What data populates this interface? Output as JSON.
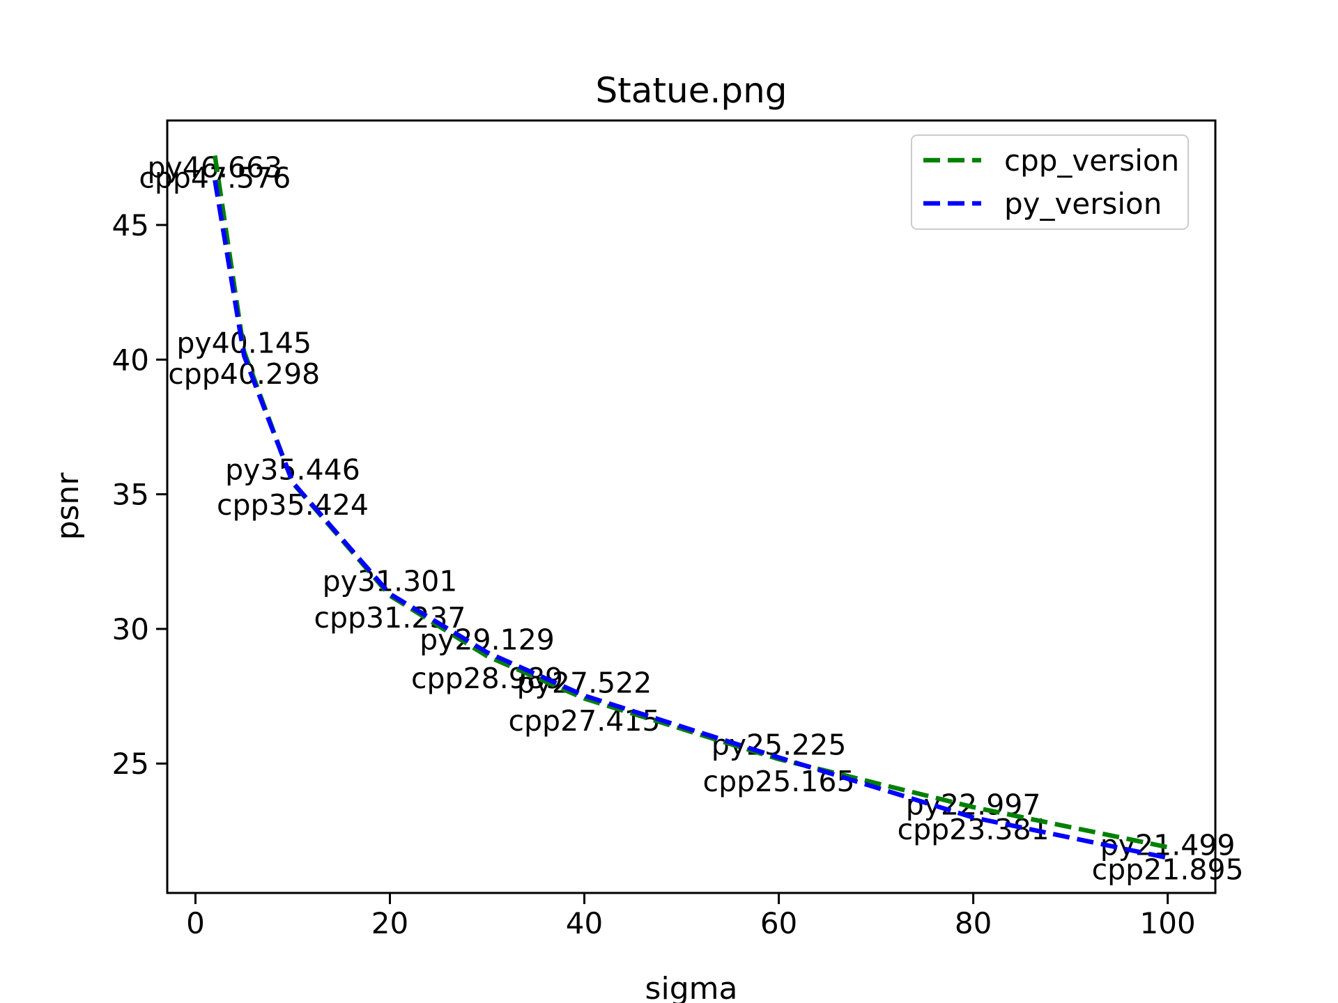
{
  "title": "Statue.png",
  "colors": {
    "cpp": "#008000",
    "py": "#0000ff",
    "spine": "#000000",
    "legend_border": "#cccccc"
  },
  "chart_data": {
    "type": "line",
    "title": "Statue.png",
    "xlabel": "sigma",
    "ylabel": "psnr",
    "x": [
      2,
      5,
      10,
      20,
      30,
      40,
      60,
      80,
      100
    ],
    "series": [
      {
        "name": "cpp_version",
        "color": "#008000",
        "linestyle": "dashed",
        "label_prefix": "cpp",
        "values": [
          47.576,
          40.298,
          35.424,
          31.237,
          28.989,
          27.415,
          25.165,
          23.381,
          21.895
        ],
        "point_labels": [
          "cpp47.576",
          "cpp40.298",
          "cpp35.424",
          "cpp31.237",
          "cpp28.989",
          "cpp27.415",
          "cpp25.165",
          "cpp23.381",
          "cpp21.895"
        ]
      },
      {
        "name": "py_version",
        "color": "#0000ff",
        "linestyle": "dashed",
        "label_prefix": "py",
        "values": [
          46.663,
          40.145,
          35.446,
          31.301,
          29.129,
          27.522,
          25.225,
          22.997,
          21.499
        ],
        "point_labels": [
          "py46.663",
          "py40.145",
          "py35.446",
          "py31.301",
          "py29.129",
          "py27.522",
          "py25.225",
          "py22.997",
          "py21.499"
        ]
      }
    ],
    "xticks": [
      0,
      20,
      40,
      60,
      80,
      100
    ],
    "yticks": [
      25,
      30,
      35,
      40,
      45
    ],
    "xlim": [
      -2.9,
      104.9
    ],
    "ylim": [
      20.195,
      48.88
    ],
    "grid": false,
    "legend_position": "upper right"
  }
}
